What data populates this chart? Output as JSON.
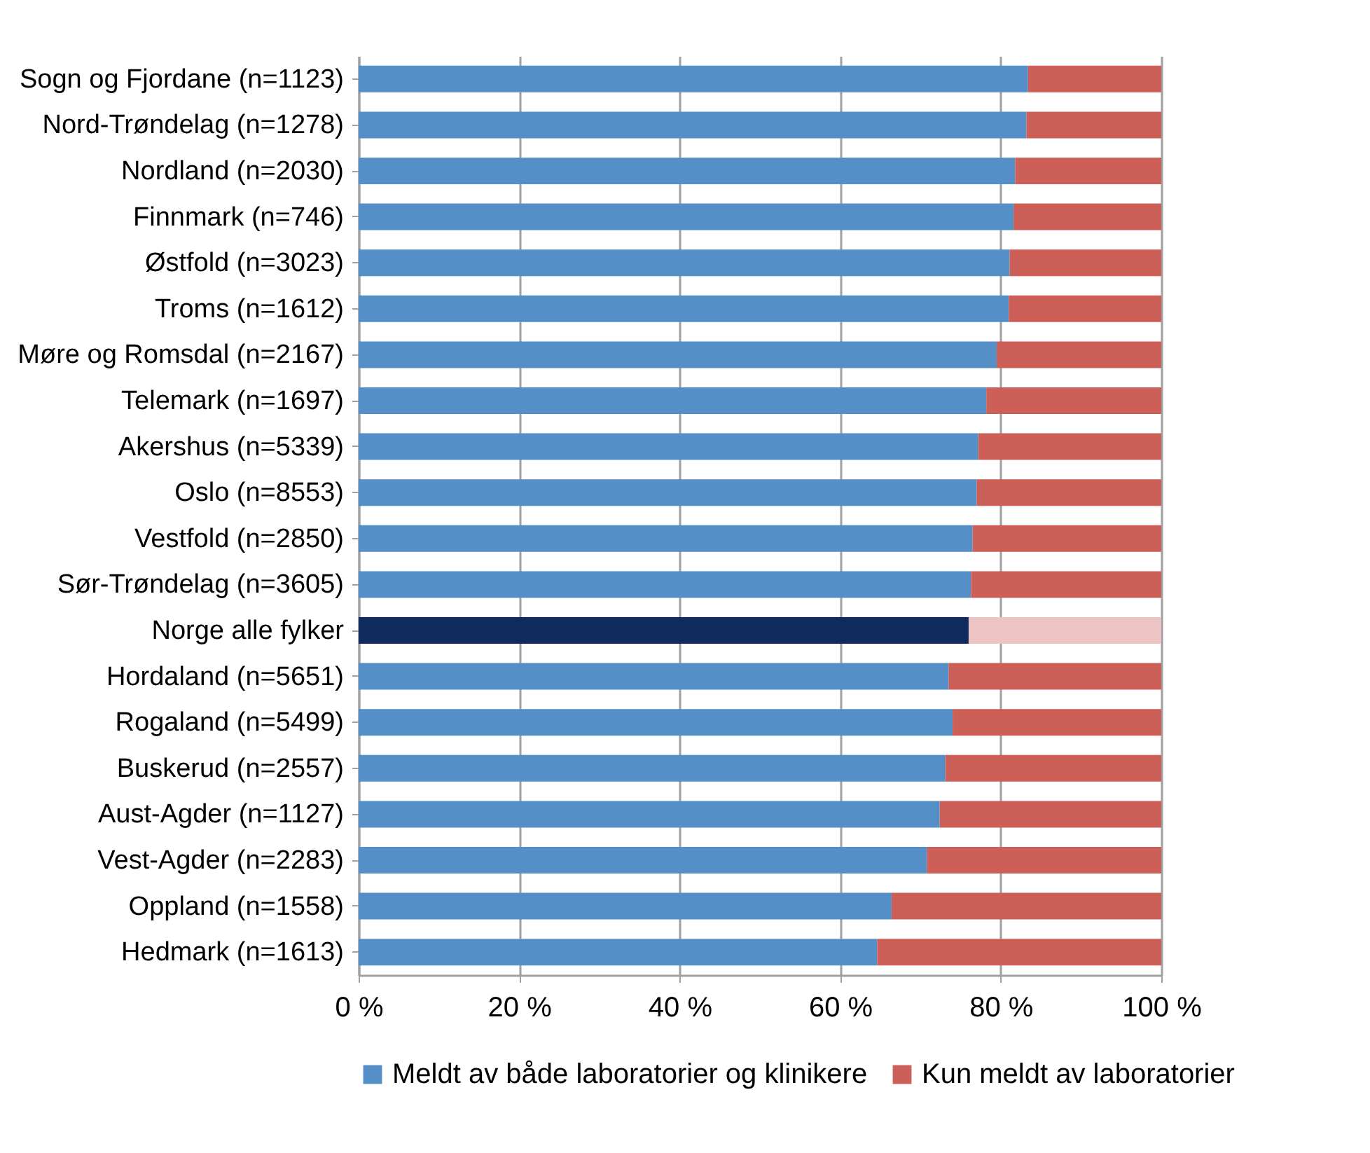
{
  "chart_data": {
    "type": "bar",
    "orientation": "horizontal",
    "stacked": true,
    "categories": [
      "Sogn og Fjordane (n=1123)",
      "Nord-Trøndelag (n=1278)",
      "Nordland (n=2030)",
      "Finnmark (n=746)",
      "Østfold (n=3023)",
      "Troms (n=1612)",
      "Møre og Romsdal (n=2167)",
      "Telemark (n=1697)",
      "Akershus (n=5339)",
      "Oslo (n=8553)",
      "Vestfold (n=2850)",
      "Sør-Trøndelag (n=3605)",
      "Norge alle fylker",
      "Hordaland (n=5651)",
      "Rogaland (n=5499)",
      "Buskerud (n=2557)",
      "Aust-Agder (n=1127)",
      "Vest-Agder (n=2283)",
      "Oppland (n=1558)",
      "Hedmark (n=1613)"
    ],
    "series": [
      {
        "name": "Meldt av både laboratorier og klinikere",
        "color": "#558fc8",
        "colors": [
          "#558fc8",
          "#558fc8",
          "#558fc8",
          "#558fc8",
          "#558fc8",
          "#558fc8",
          "#558fc8",
          "#558fc8",
          "#558fc8",
          "#558fc8",
          "#558fc8",
          "#558fc8",
          "#112b5e",
          "#558fc8",
          "#558fc8",
          "#558fc8",
          "#558fc8",
          "#558fc8",
          "#558fc8",
          "#558fc8"
        ],
        "values": [
          83.4,
          83.2,
          81.8,
          81.6,
          81.1,
          81.0,
          79.5,
          78.2,
          77.2,
          77.0,
          76.5,
          76.3,
          76.0,
          73.5,
          74.0,
          73.1,
          72.4,
          70.8,
          66.4,
          64.6
        ]
      },
      {
        "name": "Kun meldt av laboratorier",
        "color": "#cc5f57",
        "colors": [
          "#cc5f57",
          "#cc5f57",
          "#cc5f57",
          "#cc5f57",
          "#cc5f57",
          "#cc5f57",
          "#cc5f57",
          "#cc5f57",
          "#cc5f57",
          "#cc5f57",
          "#cc5f57",
          "#cc5f57",
          "#ebc4c3",
          "#cc5f57",
          "#cc5f57",
          "#cc5f57",
          "#cc5f57",
          "#cc5f57",
          "#cc5f57",
          "#cc5f57"
        ],
        "values": [
          16.6,
          16.8,
          18.2,
          18.4,
          18.9,
          19.0,
          20.5,
          21.8,
          22.8,
          23.0,
          23.5,
          23.7,
          24.0,
          26.5,
          26.0,
          26.9,
          27.6,
          29.2,
          33.6,
          35.4
        ]
      }
    ],
    "xlim": [
      0,
      100
    ],
    "xticks": [
      {
        "value": 0,
        "label": "0 %"
      },
      {
        "value": 20,
        "label": "20 %"
      },
      {
        "value": 40,
        "label": "40 %"
      },
      {
        "value": 60,
        "label": "60 %"
      },
      {
        "value": 80,
        "label": "80 %"
      },
      {
        "value": 100,
        "label": "100 %"
      }
    ],
    "grid": "x",
    "legend": "bottom"
  }
}
